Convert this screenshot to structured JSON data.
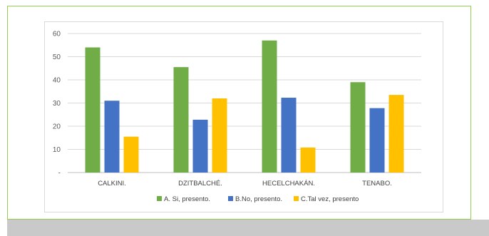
{
  "chart_data": {
    "type": "bar",
    "title": "",
    "xlabel": "",
    "ylabel": "",
    "categories": [
      "CALKINI.",
      "DZITBALCHÉ.",
      "HECELCHAKÁN.",
      "TENABO."
    ],
    "ylim": [
      0,
      60
    ],
    "y_ticks": [
      "-",
      "10",
      "20",
      "30",
      "40",
      "50",
      "60"
    ],
    "grid": true,
    "legend_position": "bottom",
    "series": [
      {
        "name": "A. Si, presento.",
        "color": "#70ad47",
        "values": [
          54,
          45.5,
          57,
          39
        ]
      },
      {
        "name": "B.No, presento.",
        "color": "#4472c4",
        "values": [
          31,
          22.8,
          32.3,
          27.8
        ]
      },
      {
        "name": "C.Tal vez, presento",
        "color": "#ffc000",
        "values": [
          15.5,
          32,
          10.8,
          33.5
        ]
      }
    ]
  }
}
